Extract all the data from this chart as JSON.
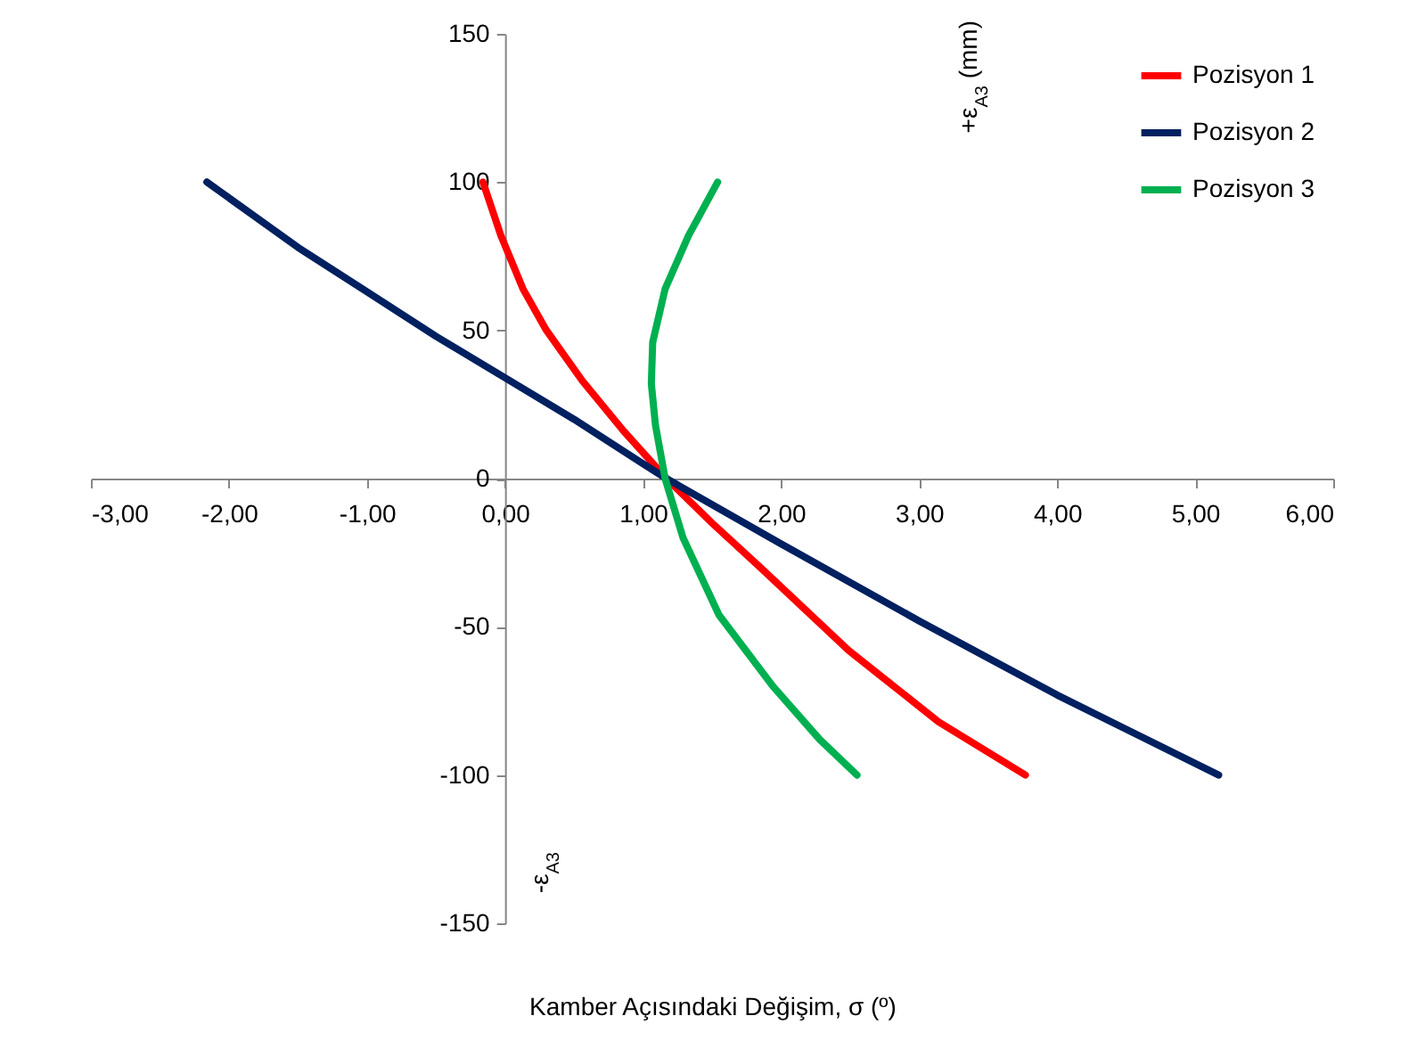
{
  "chart_data": {
    "type": "line",
    "xlabel": "Kamber Açısındaki  Değişim, σ (º)",
    "ylabel": "+ε$_{A3}$ (mm)",
    "annotations": [
      "-ε$_{A3}$"
    ],
    "xlim": [
      -3,
      6
    ],
    "xticks": [
      {
        "value": -3,
        "label": "-3,00"
      },
      {
        "value": -2,
        "label": "-2,00"
      },
      {
        "value": -1,
        "label": "-1,00"
      },
      {
        "value": 0,
        "label": "0,00"
      },
      {
        "value": 1,
        "label": "1,00"
      },
      {
        "value": 2,
        "label": "2,00"
      },
      {
        "value": 3,
        "label": "3,00"
      },
      {
        "value": 4,
        "label": "4,00"
      },
      {
        "value": 5,
        "label": "5,00"
      },
      {
        "value": 6,
        "label": "6,00"
      }
    ],
    "ylim": [
      -150,
      150
    ],
    "yticks": [
      -150,
      -100,
      -50,
      0,
      50,
      100,
      150
    ],
    "grid": false,
    "legend": "top right",
    "marker": "none",
    "line_style": "solid",
    "series": [
      {
        "name": "Pozisyon 1",
        "color": "#ff0000",
        "x": [
          -0.16,
          -0.03,
          0.13,
          0.3,
          0.56,
          0.86,
          1.17,
          1.5,
          1.85,
          2.49,
          3.14,
          3.77
        ],
        "values": [
          100,
          82,
          64,
          50,
          33,
          16,
          0,
          -15,
          -30,
          -58,
          -82,
          -100
        ]
      },
      {
        "name": "Pozisyon 2",
        "color": "#002060",
        "x": [
          -2.16,
          -1.5,
          -1,
          -0.5,
          0,
          0.5,
          1,
          1.17,
          2,
          3,
          4,
          5.17
        ],
        "values": [
          100,
          78,
          63,
          48,
          34,
          20,
          5,
          0,
          -22,
          -48,
          -73,
          -100
        ]
      },
      {
        "name": "Pozisyon 3",
        "color": "#00b050",
        "x": [
          1.54,
          1.33,
          1.16,
          1.07,
          1.06,
          1.09,
          1.16,
          1.29,
          1.55,
          1.94,
          2.28,
          2.55
        ],
        "values": [
          100,
          82,
          64,
          46,
          32,
          18,
          0,
          -20,
          -46,
          -70,
          -88,
          -100
        ]
      }
    ]
  }
}
